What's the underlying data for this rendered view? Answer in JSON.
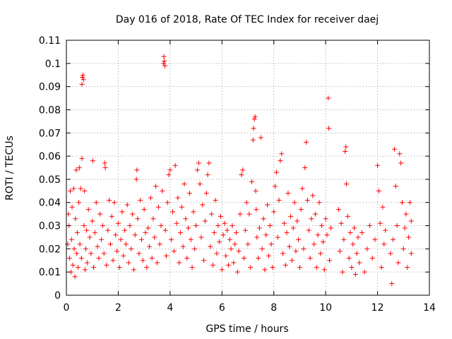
{
  "chart_data": {
    "type": "scatter",
    "title": "Day 016 of 2018, Rate Of TEC Index for receiver daej",
    "xlabel": "GPS time / hours",
    "ylabel": "ROTI / TECUs",
    "xlim": [
      0,
      14
    ],
    "ylim": [
      0,
      0.11
    ],
    "xticks": [
      "0",
      "2",
      "4",
      "6",
      "8",
      "10",
      "12",
      "14"
    ],
    "yticks": [
      "0",
      "0.01",
      "0.02",
      "0.03",
      "0.04",
      "0.05",
      "0.06",
      "0.07",
      "0.08",
      "0.09",
      "0.1",
      "0.11"
    ],
    "grid": true,
    "marker": "+",
    "color": "#ff0000",
    "series": [
      {
        "name": "ROTI",
        "points": [
          [
            0.05,
            0.022
          ],
          [
            0.08,
            0.035
          ],
          [
            0.1,
            0.03
          ],
          [
            0.12,
            0.016
          ],
          [
            0.15,
            0.045
          ],
          [
            0.18,
            0.01
          ],
          [
            0.2,
            0.024
          ],
          [
            0.22,
            0.038
          ],
          [
            0.25,
            0.013
          ],
          [
            0.28,
            0.046
          ],
          [
            0.3,
            0.02
          ],
          [
            0.33,
            0.008
          ],
          [
            0.35,
            0.033
          ],
          [
            0.38,
            0.054
          ],
          [
            0.4,
            0.018
          ],
          [
            0.42,
            0.027
          ],
          [
            0.45,
            0.012
          ],
          [
            0.48,
            0.04
          ],
          [
            0.5,
            0.055
          ],
          [
            0.52,
            0.022
          ],
          [
            0.55,
            0.046
          ],
          [
            0.58,
            0.016
          ],
          [
            0.6,
            0.059
          ],
          [
            0.6,
            0.091
          ],
          [
            0.62,
            0.094
          ],
          [
            0.64,
            0.095
          ],
          [
            0.66,
            0.093
          ],
          [
            0.68,
            0.03
          ],
          [
            0.7,
            0.045
          ],
          [
            0.72,
            0.011
          ],
          [
            0.75,
            0.02
          ],
          [
            0.78,
            0.028
          ],
          [
            0.8,
            0.014
          ],
          [
            0.85,
            0.037
          ],
          [
            0.9,
            0.025
          ],
          [
            0.95,
            0.018
          ],
          [
            1.0,
            0.032
          ],
          [
            1.02,
            0.058
          ],
          [
            1.05,
            0.012
          ],
          [
            1.1,
            0.027
          ],
          [
            1.15,
            0.04
          ],
          [
            1.2,
            0.021
          ],
          [
            1.25,
            0.016
          ],
          [
            1.3,
            0.035
          ],
          [
            1.35,
            0.024
          ],
          [
            1.4,
            0.03
          ],
          [
            1.45,
            0.018
          ],
          [
            1.48,
            0.057
          ],
          [
            1.5,
            0.055
          ],
          [
            1.55,
            0.013
          ],
          [
            1.6,
            0.028
          ],
          [
            1.65,
            0.041
          ],
          [
            1.7,
            0.022
          ],
          [
            1.75,
            0.034
          ],
          [
            1.8,
            0.015
          ],
          [
            1.85,
            0.04
          ],
          [
            1.9,
            0.026
          ],
          [
            1.95,
            0.019
          ],
          [
            2.0,
            0.031
          ],
          [
            2.05,
            0.012
          ],
          [
            2.1,
            0.024
          ],
          [
            2.15,
            0.036
          ],
          [
            2.2,
            0.017
          ],
          [
            2.25,
            0.028
          ],
          [
            2.3,
            0.022
          ],
          [
            2.35,
            0.039
          ],
          [
            2.4,
            0.014
          ],
          [
            2.45,
            0.03
          ],
          [
            2.5,
            0.02
          ],
          [
            2.55,
            0.035
          ],
          [
            2.6,
            0.011
          ],
          [
            2.65,
            0.026
          ],
          [
            2.7,
            0.05
          ],
          [
            2.72,
            0.054
          ],
          [
            2.75,
            0.033
          ],
          [
            2.8,
            0.018
          ],
          [
            2.85,
            0.041
          ],
          [
            2.9,
            0.024
          ],
          [
            2.95,
            0.015
          ],
          [
            3.0,
            0.037
          ],
          [
            3.05,
            0.027
          ],
          [
            3.1,
            0.012
          ],
          [
            3.15,
            0.029
          ],
          [
            3.2,
            0.021
          ],
          [
            3.25,
            0.042
          ],
          [
            3.3,
            0.016
          ],
          [
            3.35,
            0.033
          ],
          [
            3.4,
            0.025
          ],
          [
            3.45,
            0.047
          ],
          [
            3.5,
            0.014
          ],
          [
            3.55,
            0.038
          ],
          [
            3.6,
            0.022
          ],
          [
            3.65,
            0.03
          ],
          [
            3.7,
            0.045
          ],
          [
            3.75,
            0.1
          ],
          [
            3.76,
            0.103
          ],
          [
            3.78,
            0.101
          ],
          [
            3.8,
            0.099
          ],
          [
            3.82,
            0.028
          ],
          [
            3.85,
            0.017
          ],
          [
            3.9,
            0.04
          ],
          [
            3.95,
            0.052
          ],
          [
            4.0,
            0.054
          ],
          [
            4.05,
            0.024
          ],
          [
            4.1,
            0.036
          ],
          [
            4.15,
            0.019
          ],
          [
            4.2,
            0.056
          ],
          [
            4.25,
            0.031
          ],
          [
            4.3,
            0.042
          ],
          [
            4.35,
            0.014
          ],
          [
            4.4,
            0.027
          ],
          [
            4.45,
            0.038
          ],
          [
            4.5,
            0.021
          ],
          [
            4.55,
            0.048
          ],
          [
            4.6,
            0.033
          ],
          [
            4.65,
            0.016
          ],
          [
            4.7,
            0.029
          ],
          [
            4.75,
            0.044
          ],
          [
            4.8,
            0.024
          ],
          [
            4.85,
            0.012
          ],
          [
            4.9,
            0.036
          ],
          [
            4.95,
            0.02
          ],
          [
            5.0,
            0.03
          ],
          [
            5.05,
            0.054
          ],
          [
            5.1,
            0.057
          ],
          [
            5.15,
            0.048
          ],
          [
            5.2,
            0.025
          ],
          [
            5.25,
            0.039
          ],
          [
            5.3,
            0.015
          ],
          [
            5.35,
            0.032
          ],
          [
            5.4,
            0.044
          ],
          [
            5.45,
            0.052
          ],
          [
            5.5,
            0.057
          ],
          [
            5.55,
            0.021
          ],
          [
            5.6,
            0.035
          ],
          [
            5.65,
            0.013
          ],
          [
            5.7,
            0.027
          ],
          [
            5.75,
            0.041
          ],
          [
            5.8,
            0.018
          ],
          [
            5.85,
            0.03
          ],
          [
            5.9,
            0.023
          ],
          [
            5.95,
            0.034
          ],
          [
            6.0,
            0.011
          ],
          [
            6.05,
            0.026
          ],
          [
            6.1,
            0.031
          ],
          [
            6.15,
            0.017
          ],
          [
            6.2,
            0.028
          ],
          [
            6.25,
            0.013
          ],
          [
            6.3,
            0.024
          ],
          [
            6.35,
            0.02
          ],
          [
            6.4,
            0.03
          ],
          [
            6.45,
            0.014
          ],
          [
            6.5,
            0.022
          ],
          [
            6.55,
            0.027
          ],
          [
            6.6,
            0.01
          ],
          [
            6.65,
            0.019
          ],
          [
            6.7,
            0.035
          ],
          [
            6.75,
            0.052
          ],
          [
            6.8,
            0.054
          ],
          [
            6.85,
            0.016
          ],
          [
            6.9,
            0.028
          ],
          [
            6.95,
            0.04
          ],
          [
            7.0,
            0.022
          ],
          [
            7.05,
            0.035
          ],
          [
            7.1,
            0.012
          ],
          [
            7.15,
            0.049
          ],
          [
            7.2,
            0.067
          ],
          [
            7.22,
            0.072
          ],
          [
            7.25,
            0.076
          ],
          [
            7.28,
            0.077
          ],
          [
            7.3,
            0.045
          ],
          [
            7.32,
            0.037
          ],
          [
            7.35,
            0.025
          ],
          [
            7.4,
            0.016
          ],
          [
            7.45,
            0.029
          ],
          [
            7.5,
            0.068
          ],
          [
            7.55,
            0.02
          ],
          [
            7.6,
            0.033
          ],
          [
            7.65,
            0.011
          ],
          [
            7.7,
            0.026
          ],
          [
            7.75,
            0.039
          ],
          [
            7.8,
            0.017
          ],
          [
            7.85,
            0.03
          ],
          [
            7.9,
            0.022
          ],
          [
            7.95,
            0.012
          ],
          [
            8.0,
            0.036
          ],
          [
            8.05,
            0.047
          ],
          [
            8.1,
            0.053
          ],
          [
            8.15,
            0.025
          ],
          [
            8.2,
            0.041
          ],
          [
            8.25,
            0.058
          ],
          [
            8.3,
            0.061
          ],
          [
            8.35,
            0.018
          ],
          [
            8.4,
            0.031
          ],
          [
            8.45,
            0.013
          ],
          [
            8.5,
            0.027
          ],
          [
            8.55,
            0.044
          ],
          [
            8.6,
            0.021
          ],
          [
            8.65,
            0.034
          ],
          [
            8.7,
            0.015
          ],
          [
            8.75,
            0.029
          ],
          [
            8.8,
            0.04
          ],
          [
            8.85,
            0.019
          ],
          [
            8.9,
            0.032
          ],
          [
            8.95,
            0.024
          ],
          [
            9.0,
            0.012
          ],
          [
            9.05,
            0.037
          ],
          [
            9.1,
            0.046
          ],
          [
            9.15,
            0.02
          ],
          [
            9.2,
            0.055
          ],
          [
            9.25,
            0.066
          ],
          [
            9.3,
            0.041
          ],
          [
            9.35,
            0.028
          ],
          [
            9.4,
            0.016
          ],
          [
            9.45,
            0.033
          ],
          [
            9.5,
            0.043
          ],
          [
            9.55,
            0.022
          ],
          [
            9.6,
            0.035
          ],
          [
            9.65,
            0.012
          ],
          [
            9.7,
            0.026
          ],
          [
            9.75,
            0.04
          ],
          [
            9.8,
            0.018
          ],
          [
            9.85,
            0.03
          ],
          [
            9.9,
            0.023
          ],
          [
            9.95,
            0.011
          ],
          [
            10.0,
            0.033
          ],
          [
            10.05,
            0.026
          ],
          [
            10.1,
            0.085
          ],
          [
            10.12,
            0.072
          ],
          [
            10.15,
            0.015
          ],
          [
            10.2,
            0.029
          ],
          [
            10.5,
            0.037
          ],
          [
            10.55,
            0.019
          ],
          [
            10.6,
            0.031
          ],
          [
            10.65,
            0.01
          ],
          [
            10.7,
            0.024
          ],
          [
            10.75,
            0.062
          ],
          [
            10.78,
            0.064
          ],
          [
            10.8,
            0.048
          ],
          [
            10.85,
            0.034
          ],
          [
            10.9,
            0.016
          ],
          [
            10.95,
            0.027
          ],
          [
            11.0,
            0.012
          ],
          [
            11.05,
            0.022
          ],
          [
            11.1,
            0.029
          ],
          [
            11.15,
            0.009
          ],
          [
            11.2,
            0.018
          ],
          [
            11.25,
            0.025
          ],
          [
            11.3,
            0.014
          ],
          [
            11.4,
            0.027
          ],
          [
            11.5,
            0.01
          ],
          [
            11.6,
            0.02
          ],
          [
            11.7,
            0.03
          ],
          [
            11.8,
            0.016
          ],
          [
            11.9,
            0.024
          ],
          [
            12.0,
            0.056
          ],
          [
            12.05,
            0.045
          ],
          [
            12.1,
            0.031
          ],
          [
            12.15,
            0.012
          ],
          [
            12.2,
            0.038
          ],
          [
            12.25,
            0.022
          ],
          [
            12.3,
            0.028
          ],
          [
            12.5,
            0.018
          ],
          [
            12.55,
            0.005
          ],
          [
            12.6,
            0.024
          ],
          [
            12.65,
            0.063
          ],
          [
            12.7,
            0.047
          ],
          [
            12.75,
            0.03
          ],
          [
            12.8,
            0.014
          ],
          [
            12.85,
            0.061
          ],
          [
            12.9,
            0.057
          ],
          [
            12.95,
            0.04
          ],
          [
            13.0,
            0.02
          ],
          [
            13.05,
            0.029
          ],
          [
            13.1,
            0.035
          ],
          [
            13.15,
            0.012
          ],
          [
            13.2,
            0.025
          ],
          [
            13.25,
            0.04
          ],
          [
            13.3,
            0.018
          ],
          [
            13.3,
            0.032
          ]
        ]
      }
    ]
  }
}
